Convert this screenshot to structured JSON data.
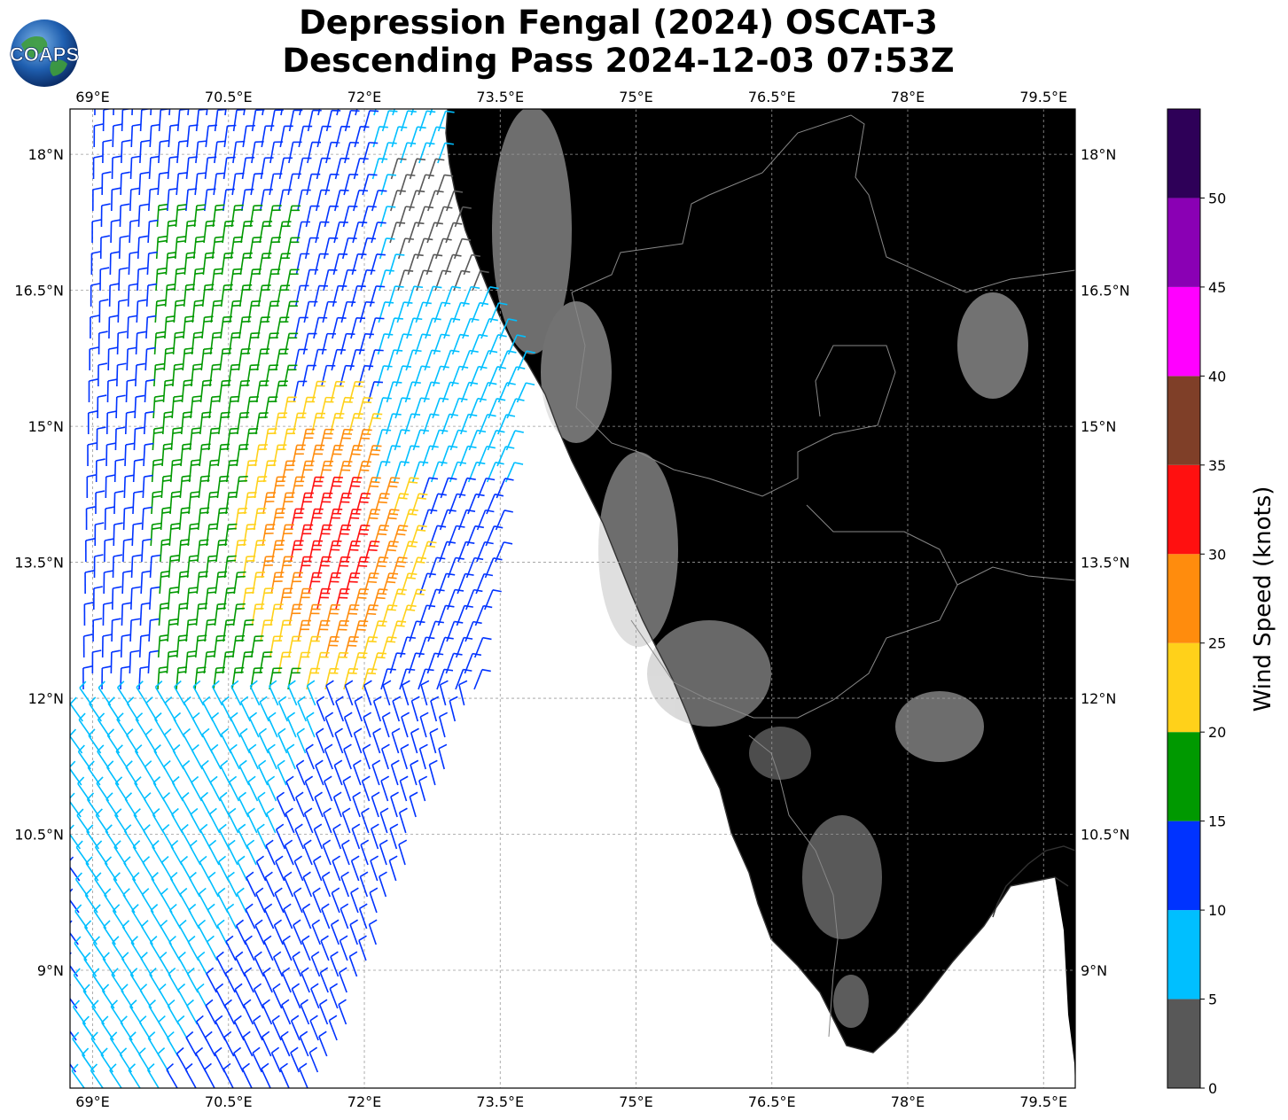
{
  "title": {
    "line1": "Depression Fengal (2024) OSCAT-3",
    "line2": "Descending Pass 2024-12-03 07:53Z"
  },
  "logo": {
    "text": "COAPS"
  },
  "map": {
    "lon_ticks": [
      "69°E",
      "70.5°E",
      "72°E",
      "73.5°E",
      "75°E",
      "76.5°E",
      "78°E",
      "79.5°E"
    ],
    "lat_ticks": [
      "18°N",
      "16.5°N",
      "15°N",
      "13.5°N",
      "12°N",
      "10.5°N",
      "9°N"
    ],
    "lon_values": [
      69,
      70.5,
      72,
      73.5,
      75,
      76.5,
      78,
      79.5
    ],
    "lat_values": [
      18,
      16.5,
      15,
      13.5,
      12,
      10.5,
      9
    ],
    "lon_range": [
      68.75,
      79.85
    ],
    "lat_range": [
      7.7,
      18.5
    ],
    "land_color": "#ececec",
    "ocean_color": "#ffffff",
    "coast_color": "#333333",
    "border_color": "#888888",
    "grid": true
  },
  "colorbar": {
    "label": "Wind Speed (knots)",
    "ticks": [
      "0",
      "5",
      "10",
      "15",
      "20",
      "25",
      "30",
      "35",
      "40",
      "45",
      "50"
    ],
    "bins": [
      {
        "from": 0,
        "to": 5,
        "color": "#585858"
      },
      {
        "from": 5,
        "to": 10,
        "color": "#00bfff"
      },
      {
        "from": 10,
        "to": 15,
        "color": "#0033ff"
      },
      {
        "from": 15,
        "to": 20,
        "color": "#009900"
      },
      {
        "from": 20,
        "to": 25,
        "color": "#ffd11a"
      },
      {
        "from": 25,
        "to": 30,
        "color": "#ff8c0d"
      },
      {
        "from": 30,
        "to": 35,
        "color": "#ff1010"
      },
      {
        "from": 35,
        "to": 40,
        "color": "#7f3f28"
      },
      {
        "from": 40,
        "to": 45,
        "color": "#ff00ff"
      },
      {
        "from": 45,
        "to": 50,
        "color": "#8a00b4"
      },
      {
        "from": 50,
        "to": 55,
        "color": "#2e0058"
      }
    ]
  }
}
